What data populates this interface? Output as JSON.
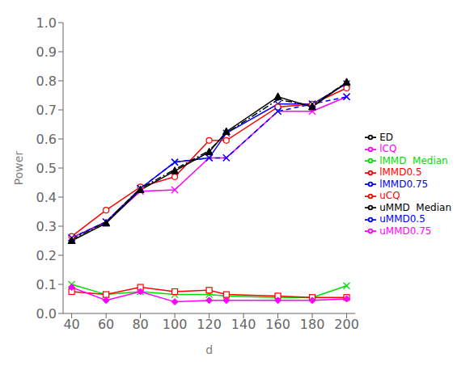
{
  "chart_data": {
    "type": "line",
    "xlabel": "d",
    "ylabel": "Power",
    "x": [
      40,
      60,
      80,
      100,
      120,
      130,
      160,
      180,
      200
    ],
    "series": [
      {
        "name": "uMMD0.5",
        "color": "#0000ff",
        "marker": "x",
        "line_style": "solid",
        "values": [
          0.26,
          0.315,
          0.43,
          0.52,
          0.535,
          0.62,
          0.72,
          0.72,
          0.79
        ]
      },
      {
        "name": "lMMD0.5",
        "color": "#ff0000",
        "marker": "circle",
        "line_style": "solid",
        "values": [
          0.265,
          0.355,
          0.435,
          0.47,
          0.595,
          0.595,
          0.71,
          0.72,
          0.775
        ]
      },
      {
        "name": "uMMD0.75",
        "color": "#ff00ff",
        "marker": "x",
        "line_style": "solid",
        "values": [
          0.26,
          0.315,
          0.42,
          0.425,
          0.535,
          0.535,
          0.695,
          0.695,
          0.745
        ]
      },
      {
        "name": "lMMD0.75",
        "color": "#0000ff",
        "marker": "x",
        "line_style": "dashed",
        "values": [
          0.26,
          0.315,
          0.43,
          0.52,
          0.535,
          0.535,
          0.695,
          0.72,
          0.745
        ]
      },
      {
        "name": "uMMD  Median",
        "color": "#000000",
        "line_style": "dashdot",
        "values": [
          0.255,
          0.315,
          0.43,
          0.495,
          0.56,
          0.62,
          0.735,
          0.715,
          0.795
        ]
      },
      {
        "name": "lMMD  Median",
        "color": "#00dd00",
        "marker": "x",
        "line_style": "solid",
        "values": [
          0.1,
          0.065,
          0.075,
          0.065,
          0.065,
          0.06,
          0.055,
          0.055,
          0.095
        ]
      },
      {
        "name": "uCQ",
        "color": "#ff0000",
        "marker": "square",
        "line_style": "solid",
        "values": [
          0.075,
          0.065,
          0.09,
          0.075,
          0.08,
          0.065,
          0.06,
          0.055,
          0.055
        ]
      },
      {
        "name": "lCQ",
        "color": "#ff00ff",
        "marker": "diamond",
        "line_style": "solid",
        "values": [
          0.09,
          0.045,
          0.075,
          0.04,
          0.045,
          0.045,
          0.045,
          0.045,
          0.05
        ]
      },
      {
        "name": "ED",
        "color": "#000000",
        "marker": "triangle",
        "line_style": "solid",
        "values": [
          0.25,
          0.31,
          0.425,
          0.49,
          0.555,
          0.625,
          0.745,
          0.71,
          0.795
        ]
      }
    ],
    "xlim": [
      35,
      205
    ],
    "ylim": [
      0,
      1.0
    ],
    "xticks": [
      40,
      60,
      80,
      100,
      120,
      140,
      160,
      180,
      200
    ],
    "yticks": [
      {
        "value": 0,
        "label": "0.0"
      },
      0.1,
      0.2,
      0.3,
      0.4,
      0.5,
      0.6,
      0.7,
      0.8,
      0.9,
      {
        "value": 1.0,
        "label": "1.0"
      }
    ],
    "grid": false,
    "legend": "right"
  }
}
